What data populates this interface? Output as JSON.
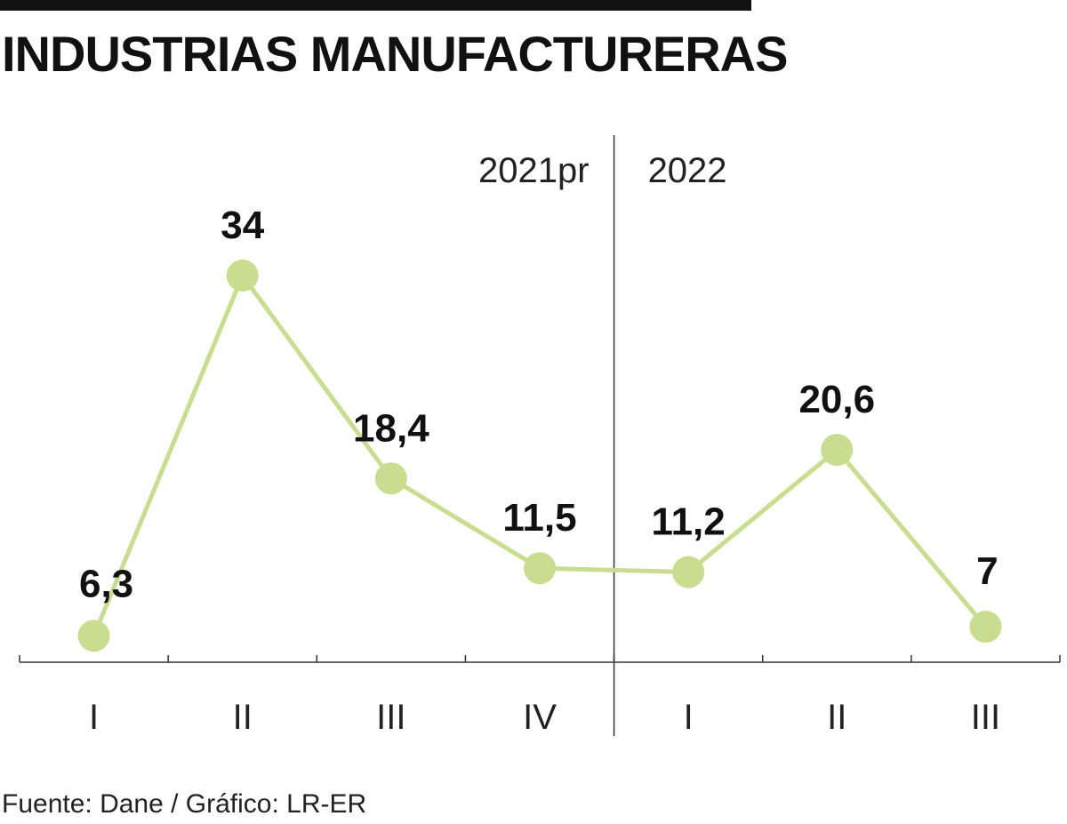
{
  "header": {
    "title": "INDUSTRIAS MANUFACTURERAS"
  },
  "footer": {
    "source": "Fuente: Dane / Gráfico: LR-ER"
  },
  "colors": {
    "line": "#c9dd91",
    "marker": "#c9dd91",
    "axis": "#333333",
    "text": "#111111"
  },
  "chart_data": {
    "type": "line",
    "title": "INDUSTRIAS MANUFACTURERAS",
    "xlabel": "",
    "ylabel": "",
    "categories": [
      "I",
      "II",
      "III",
      "IV",
      "I",
      "II",
      "III"
    ],
    "periods": [
      {
        "label": "2021pr",
        "quarters": [
          "I",
          "II",
          "III",
          "IV"
        ]
      },
      {
        "label": "2022",
        "quarters": [
          "I",
          "II",
          "III"
        ]
      }
    ],
    "series": [
      {
        "values": [
          6.3,
          34,
          18.4,
          11.5,
          11.2,
          20.6,
          7
        ],
        "value_labels": [
          "6,3",
          "34",
          "18,4",
          "11,5",
          "11,2",
          "20,6",
          "7"
        ]
      }
    ],
    "ylim": [
      5.5,
      34
    ],
    "grid": false,
    "legend": "none"
  }
}
